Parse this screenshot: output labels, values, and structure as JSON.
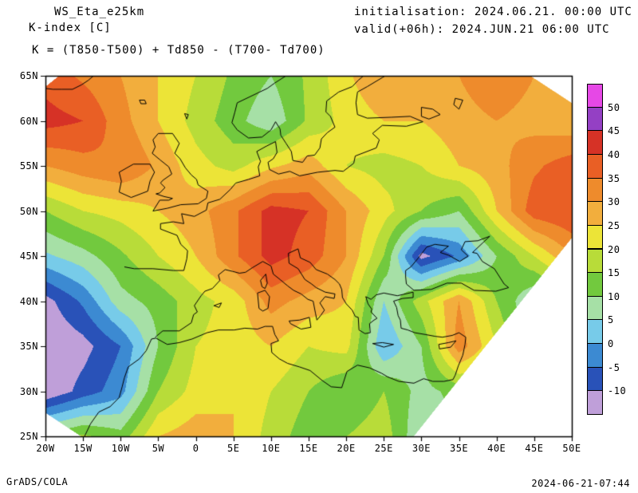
{
  "header": {
    "model": "WS_Eta_e25km",
    "parameter": "K-index [C]",
    "formula": "K = (T850-T500) + Td850 - (T700- Td700)",
    "init_label": "initialisation: 2024.06.21. 00:00 UTC",
    "valid_label": "valid(+06h): 2024.JUN.21 06:00 UTC"
  },
  "footer": {
    "left": "GrADS/COLA",
    "right": "2024-06-21-07:44"
  },
  "chart_data": {
    "type": "heatmap",
    "title": "K-index [C]",
    "model": "WS_Eta_e25km",
    "units": "C",
    "x_axis": {
      "tick_labels": [
        "20W",
        "15W",
        "10W",
        "5W",
        "0",
        "5E",
        "10E",
        "15E",
        "20E",
        "25E",
        "30E",
        "35E",
        "40E",
        "45E",
        "50E"
      ],
      "tick_values": [
        -20,
        -15,
        -10,
        -5,
        0,
        5,
        10,
        15,
        20,
        25,
        30,
        35,
        40,
        45,
        50
      ],
      "range": [
        -20,
        50
      ]
    },
    "y_axis": {
      "tick_labels": [
        "65N",
        "60N",
        "55N",
        "50N",
        "45N",
        "40N",
        "35N",
        "30N",
        "25N"
      ],
      "tick_values": [
        65,
        60,
        55,
        50,
        45,
        40,
        35,
        30,
        25
      ],
      "range": [
        25,
        65
      ]
    },
    "levels": [
      -10,
      -5,
      0,
      5,
      10,
      15,
      20,
      25,
      30,
      35,
      40,
      45,
      50
    ],
    "colorbar": {
      "tick_labels_top_to_bottom": [
        "50",
        "45",
        "40",
        "35",
        "30",
        "25",
        "20",
        "15",
        "10",
        "5",
        "0",
        "-5",
        "-10"
      ],
      "colors_low_to_high": [
        "#bf9fd9",
        "#2952b8",
        "#3c8ad2",
        "#77cbe9",
        "#a6e0a6",
        "#72c93e",
        "#b8dc39",
        "#ece437",
        "#f2ae3d",
        "#ee8b2c",
        "#e95f25",
        "#d63226",
        "#9440c4",
        "#e648e6"
      ]
    },
    "grid": {
      "lons": [
        -20,
        -15,
        -10,
        -5,
        0,
        5,
        10,
        15,
        20,
        25,
        30,
        35,
        40,
        45,
        50
      ],
      "lats": [
        65,
        60,
        55,
        50,
        45,
        40,
        35,
        30,
        25
      ],
      "values": [
        [
          38,
          34,
          30,
          25,
          20,
          14,
          10,
          16,
          24,
          30,
          28,
          30,
          34,
          30,
          26
        ],
        [
          42,
          40,
          32,
          25,
          18,
          12,
          6,
          16,
          22,
          25,
          25,
          28,
          30,
          28,
          26
        ],
        [
          30,
          33,
          35,
          29,
          22,
          18,
          24,
          28,
          20,
          18,
          20,
          25,
          28,
          34,
          38
        ],
        [
          15,
          20,
          22,
          25,
          28,
          34,
          42,
          40,
          30,
          22,
          15,
          10,
          25,
          38,
          40
        ],
        [
          4,
          8,
          14,
          20,
          25,
          34,
          42,
          38,
          30,
          15,
          -12,
          -4,
          10,
          20,
          30
        ],
        [
          -12,
          -4,
          8,
          12,
          18,
          22,
          32,
          28,
          25,
          5,
          18,
          30,
          15,
          5,
          10
        ],
        [
          -15,
          -12,
          -5,
          10,
          20,
          22,
          25,
          20,
          22,
          0,
          10,
          33,
          20,
          5,
          8
        ],
        [
          -15,
          -8,
          -2,
          15,
          22,
          25,
          20,
          15,
          10,
          15,
          8,
          12,
          15,
          12,
          10
        ],
        [
          12,
          16,
          12,
          25,
          28,
          25,
          18,
          12,
          15,
          18,
          5,
          10,
          12,
          10,
          8
        ]
      ]
    },
    "mask_polygons_lonlat": [
      [
        [
          29,
          25
        ],
        [
          50,
          25
        ],
        [
          50,
          47
        ]
      ],
      [
        [
          44.5,
          65
        ],
        [
          50,
          65
        ],
        [
          50,
          62
        ]
      ],
      [
        [
          -20,
          25
        ],
        [
          -15.3,
          25
        ],
        [
          -20,
          27.6
        ]
      ],
      [
        [
          -20,
          65
        ],
        [
          -18.2,
          65
        ],
        [
          -20,
          63.8
        ]
      ]
    ],
    "coastlines": [
      [
        -9.5,
        43.8,
        -8.2,
        43.6,
        -5.7,
        43.6,
        -3.0,
        43.4,
        -1.6,
        43.4,
        -1.2,
        44.7,
        -1.1,
        45.6,
        -2.0,
        46.3,
        -2.5,
        47.3,
        -4.7,
        48.0,
        -4.7,
        48.6,
        -3.0,
        48.8,
        -1.6,
        48.6,
        -1.9,
        49.7,
        -0.2,
        49.4,
        1.4,
        50.1,
        1.6,
        50.9,
        3.2,
        51.3,
        4.6,
        52.4,
        5.3,
        53.1,
        7.0,
        53.5,
        8.5,
        53.9,
        8.3,
        54.9,
        8.6,
        55.5,
        8.1,
        56.6,
        9.4,
        57.2,
        10.6,
        57.7,
        10.8,
        56.5,
        10.3,
        55.8,
        9.6,
        55.4,
        9.8,
        54.6,
        11.0,
        54.1,
        12.5,
        54.4,
        13.8,
        53.9,
        16.2,
        54.3,
        18.5,
        54.5,
        19.6,
        54.4,
        21.0,
        55.3,
        21.2,
        56.1,
        24.0,
        57.0,
        24.4,
        57.9,
        23.5,
        58.6,
        24.8,
        59.5,
        28.0,
        59.4,
        30.2,
        59.9,
        28.5,
        60.5,
        26.0,
        60.4,
        22.8,
        60.3,
        21.5,
        60.7,
        21.3,
        62.0,
        21.5,
        63.2,
        22.8,
        63.8,
        24.8,
        64.8,
        25.2,
        65.0
      ],
      [
        12.0,
        65.0,
        10.5,
        64.2,
        9.5,
        63.6,
        8.0,
        63.0,
        5.5,
        62.0,
        5.2,
        61.0,
        4.8,
        59.8,
        5.5,
        59.0,
        7.0,
        58.1,
        8.8,
        58.2,
        10.0,
        59.0,
        10.6,
        59.9,
        11.2,
        59.1,
        11.3,
        58.4,
        12.0,
        57.5,
        12.7,
        56.6,
        12.9,
        55.6,
        14.2,
        55.4,
        14.8,
        56.1,
        15.8,
        56.2,
        16.5,
        57.0,
        16.7,
        58.0,
        17.5,
        58.7,
        18.5,
        59.3,
        17.9,
        60.5,
        17.3,
        61.0,
        17.4,
        62.2,
        19.0,
        63.2,
        20.8,
        63.8,
        21.6,
        64.5,
        22.3,
        65.0
      ],
      [
        -5.7,
        50.0,
        -3.8,
        50.3,
        -2.0,
        50.7,
        0.3,
        50.8,
        1.4,
        51.4,
        1.6,
        52.2,
        0.3,
        52.9,
        0.1,
        53.5,
        -0.6,
        54.0,
        -1.4,
        54.8,
        -2.1,
        55.8,
        -2.8,
        56.4,
        -2.2,
        57.5,
        -3.1,
        58.6,
        -5.0,
        58.6,
        -5.7,
        57.9,
        -5.4,
        57.1,
        -5.8,
        56.4,
        -4.8,
        55.7,
        -3.6,
        54.9,
        -3.2,
        54.1,
        -4.4,
        53.4,
        -4.7,
        53.1,
        -4.1,
        52.6,
        -4.8,
        52.0,
        -5.3,
        51.9,
        -4.2,
        51.6,
        -3.1,
        51.4,
        -3.6,
        51.2,
        -4.8,
        51.2,
        -5.7,
        50.0
      ],
      [
        -6.1,
        55.2,
        -8.3,
        55.2,
        -10.2,
        54.3,
        -9.9,
        53.3,
        -10.2,
        52.1,
        -8.6,
        51.5,
        -6.4,
        52.2,
        -6.1,
        53.3,
        -5.5,
        54.3,
        -6.1,
        55.2
      ],
      [
        -5.4,
        36.0,
        -4.4,
        36.7,
        -2.2,
        36.7,
        -0.6,
        37.6,
        -0.3,
        38.5,
        0.2,
        38.8,
        -0.2,
        39.5,
        0.7,
        40.6,
        1.2,
        41.1,
        2.2,
        41.4,
        3.2,
        42.3,
        3.0,
        42.9,
        3.9,
        43.5,
        4.9,
        43.3,
        5.8,
        43.1,
        6.6,
        43.2,
        7.5,
        43.7,
        8.9,
        44.4,
        10.0,
        43.9,
        10.3,
        43.0,
        11.2,
        42.4,
        12.2,
        41.7,
        13.0,
        41.2,
        14.0,
        40.8,
        14.9,
        40.2,
        15.6,
        40.0,
        15.9,
        38.7,
        16.1,
        37.9,
        16.6,
        38.4,
        17.1,
        39.0,
        16.5,
        39.8,
        17.2,
        40.5,
        18.4,
        40.3,
        18.5,
        40.8,
        17.2,
        41.0,
        16.0,
        41.5,
        15.4,
        41.9,
        14.5,
        42.4,
        13.6,
        43.6,
        12.4,
        44.2,
        12.3,
        45.3,
        13.6,
        45.8,
        13.9,
        44.8,
        15.2,
        44.3,
        16.0,
        43.5,
        17.5,
        43.0,
        18.5,
        42.4,
        19.1,
        41.9,
        19.4,
        41.3,
        19.5,
        40.4,
        20.0,
        39.7,
        20.8,
        39.0,
        21.2,
        38.3,
        21.6,
        38.2,
        21.7,
        36.8,
        22.5,
        36.4,
        23.2,
        36.5,
        23.1,
        37.5,
        23.7,
        37.9,
        24.1,
        38.1,
        23.3,
        38.8,
        23.4,
        39.1,
        22.9,
        39.7,
        22.6,
        40.5,
        23.3,
        40.2,
        24.0,
        40.7,
        25.0,
        40.9,
        26.8,
        40.6,
        28.9,
        41.0,
        28.9,
        40.4,
        27.5,
        40.3,
        26.3,
        40.0,
        26.7,
        39.3,
        26.9,
        38.4,
        27.2,
        37.9,
        27.3,
        37.0,
        28.2,
        36.8,
        29.1,
        36.5,
        30.5,
        36.3,
        31.8,
        36.1,
        32.8,
        36.0,
        34.1,
        36.2,
        35.0,
        36.5,
        35.9,
        36.0,
        35.8,
        35.2,
        35.5,
        34.0,
        34.9,
        32.8,
        34.5,
        31.8,
        34.2,
        31.3,
        33.0,
        31.1,
        31.5,
        31.1,
        30.3,
        31.4,
        29.0,
        30.9,
        27.0,
        31.1,
        25.5,
        31.6,
        24.7,
        32.0,
        23.1,
        32.6,
        21.5,
        32.9,
        20.1,
        32.2,
        19.4,
        30.4,
        18.0,
        30.5,
        16.8,
        31.2,
        15.2,
        32.3,
        13.8,
        32.7,
        12.2,
        33.1,
        11.1,
        33.6,
        10.1,
        34.3,
        10.0,
        35.3,
        11.0,
        35.6,
        10.5,
        36.3,
        10.2,
        37.2,
        9.2,
        37.2,
        8.2,
        36.9,
        6.5,
        37.0,
        5.1,
        36.8,
        3.0,
        36.8,
        1.5,
        36.5,
        -0.5,
        35.8,
        -2.2,
        35.4,
        -3.8,
        35.2,
        -5.3,
        35.9,
        -5.9,
        35.8,
        -6.6,
        34.5,
        -7.5,
        33.6,
        -9.0,
        32.7,
        -9.5,
        31.5,
        -9.8,
        30.5,
        -10.2,
        29.3,
        -11.4,
        28.3,
        -12.9,
        27.7,
        -14.0,
        26.4,
        -14.8,
        25.0
      ],
      [
        29.0,
        41.2,
        28.0,
        41.9,
        27.9,
        42.7,
        27.9,
        43.4,
        28.6,
        43.8,
        29.6,
        44.8,
        30.7,
        46.0,
        31.8,
        46.3,
        33.6,
        46.1,
        32.5,
        45.4,
        33.6,
        45.1,
        35.1,
        44.4,
        36.2,
        45.0,
        35.3,
        45.7,
        35.8,
        46.6,
        37.5,
        46.7,
        39.1,
        47.2,
        38.2,
        46.5,
        36.8,
        45.4,
        37.4,
        45.3,
        38.1,
        44.4,
        39.7,
        43.6,
        41.0,
        41.9,
        41.6,
        41.5,
        39.9,
        41.1,
        37.0,
        41.2,
        35.3,
        42.0,
        33.4,
        42.0,
        31.3,
        41.3,
        29.0,
        41.2
      ],
      [
        12.4,
        37.8,
        13.8,
        37.9,
        15.1,
        38.2,
        15.3,
        37.1,
        14.0,
        36.9,
        12.6,
        37.5,
        12.4,
        37.8
      ],
      [
        8.2,
        40.9,
        9.2,
        41.2,
        9.8,
        40.5,
        9.6,
        39.2,
        8.9,
        38.9,
        8.4,
        39.2,
        8.2,
        40.9
      ],
      [
        8.6,
        42.3,
        9.3,
        43.0,
        9.5,
        42.0,
        9.2,
        41.4,
        8.8,
        41.6,
        8.6,
        42.3
      ],
      [
        23.5,
        35.3,
        24.8,
        35.4,
        26.3,
        35.2,
        25.0,
        34.9,
        23.5,
        35.3
      ],
      [
        32.3,
        35.2,
        33.6,
        35.4,
        34.6,
        35.6,
        33.9,
        34.9,
        32.4,
        34.7,
        32.3,
        35.2
      ],
      [
        2.4,
        39.5,
        3.4,
        39.8,
        3.1,
        39.3,
        2.4,
        39.5
      ],
      [
        -20.0,
        63.6,
        -19.0,
        63.5,
        -17.8,
        63.5,
        -16.4,
        63.5,
        -15.2,
        64.0,
        -14.3,
        64.5,
        -13.6,
        65.0
      ],
      [
        -7.5,
        62.3,
        -6.8,
        62.3,
        -6.6,
        61.9,
        -7.3,
        61.9,
        -7.5,
        62.3
      ],
      [
        -1.5,
        60.8,
        -1.0,
        60.7,
        -1.2,
        60.2,
        -1.5,
        60.8
      ],
      [
        30.0,
        61.5,
        31.5,
        61.3,
        32.5,
        60.7,
        31.0,
        60.2,
        30.0,
        60.5,
        30.0,
        61.5
      ],
      [
        34.5,
        62.5,
        35.5,
        62.3,
        35.0,
        61.3,
        34.3,
        61.8,
        34.5,
        62.5
      ]
    ]
  }
}
